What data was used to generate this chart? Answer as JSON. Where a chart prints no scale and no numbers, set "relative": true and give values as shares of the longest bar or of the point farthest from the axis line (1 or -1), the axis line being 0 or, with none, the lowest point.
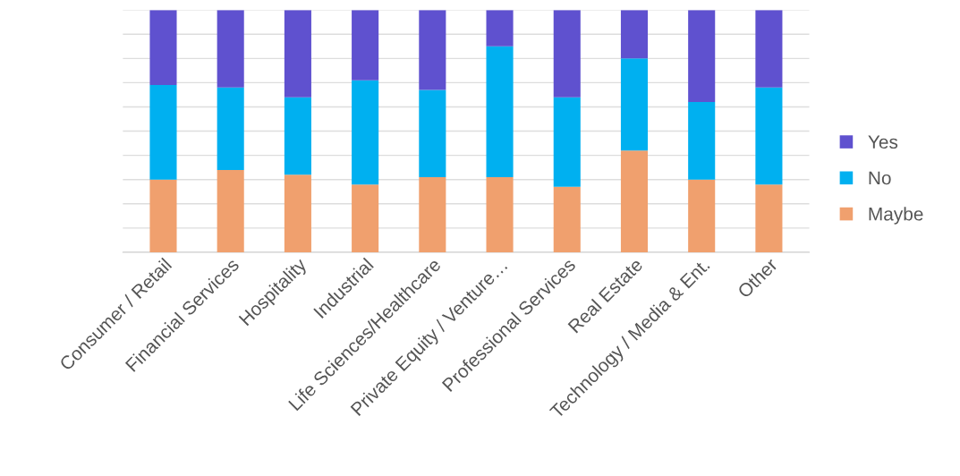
{
  "chart_data": {
    "type": "bar",
    "stacked": true,
    "relative": true,
    "grid": "y",
    "legend": "right",
    "categories": [
      "Consumer / Retail",
      "Financial Services",
      "Hospitality",
      "Industrial",
      "Life Sciences/Healthcare",
      "Private Equity / Venture…",
      "Professional Services",
      "Real Estate",
      "Technology / Media & Ent.",
      "Other"
    ],
    "series": [
      {
        "name": "Maybe",
        "color": "#f0a06e",
        "values": [
          0.3,
          0.34,
          0.32,
          0.28,
          0.31,
          0.31,
          0.27,
          0.42,
          0.3,
          0.28
        ]
      },
      {
        "name": "No",
        "color": "#00b0f0",
        "values": [
          0.39,
          0.34,
          0.32,
          0.43,
          0.36,
          0.54,
          0.37,
          0.38,
          0.32,
          0.4
        ]
      },
      {
        "name": "Yes",
        "color": "#5f51cf",
        "values": [
          0.31,
          0.32,
          0.36,
          0.29,
          0.33,
          0.15,
          0.36,
          0.2,
          0.38,
          0.32
        ]
      }
    ]
  }
}
